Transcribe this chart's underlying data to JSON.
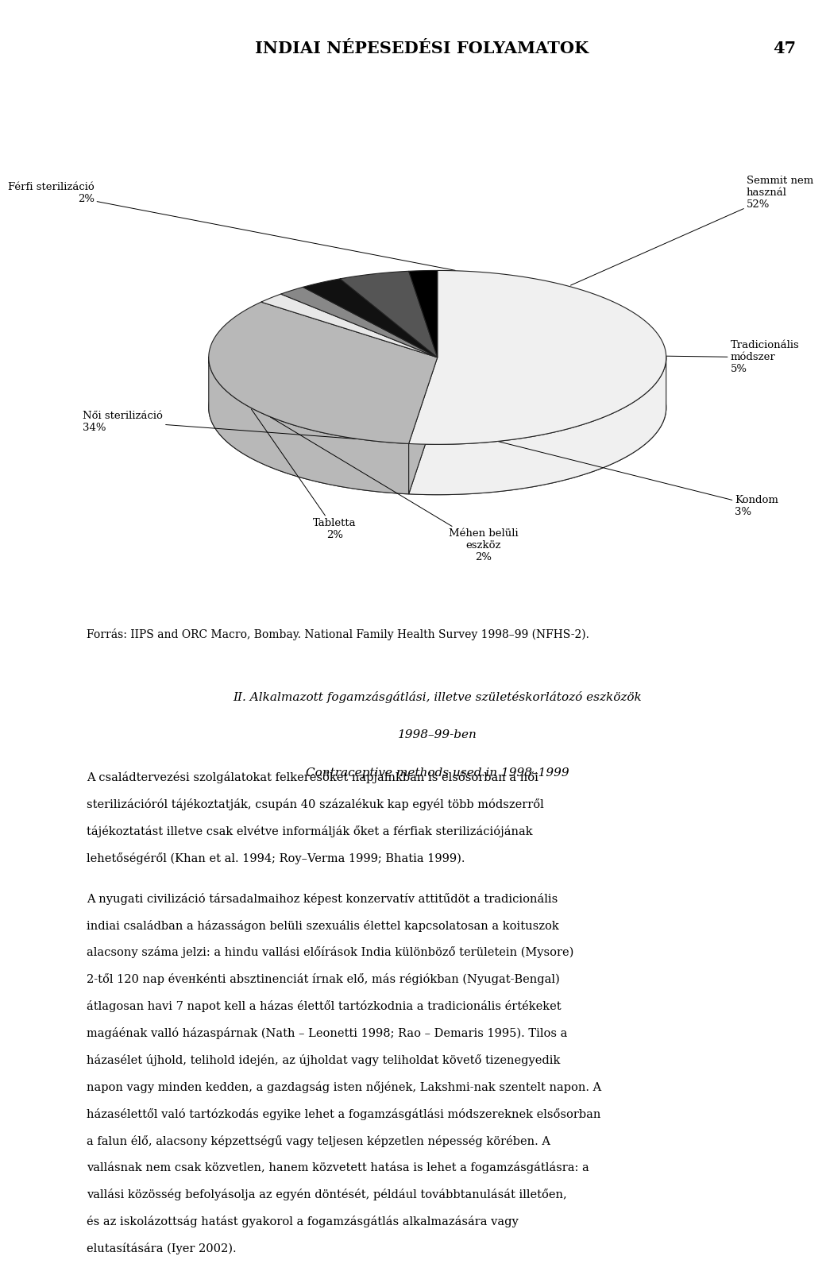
{
  "title_header": "INDIAI NÉPESEDÉSI FOLYAMATOK",
  "page_number": "47",
  "slices": [
    {
      "label": "Semmit nem\nhasznál\n52%",
      "pct": 52,
      "color": "#f0f0f0",
      "edge": "#222222"
    },
    {
      "label": "Női sterilizáció\n34%",
      "pct": 34,
      "color": "#b8b8b8",
      "edge": "#222222"
    },
    {
      "label": "Tabletta\n2%",
      "pct": 2,
      "color": "#e8e8e8",
      "edge": "#222222"
    },
    {
      "label": "Méhen belüli\neszköz\n2%",
      "pct": 2,
      "color": "#888888",
      "edge": "#222222"
    },
    {
      "label": "Kondom\n3%",
      "pct": 3,
      "color": "#111111",
      "edge": "#222222"
    },
    {
      "label": "Tradicionális\nmódszer\n5%",
      "pct": 5,
      "color": "#555555",
      "edge": "#222222"
    },
    {
      "label": "Férfi sterilizáció\n2%",
      "pct": 2,
      "color": "#000000",
      "edge": "#222222"
    }
  ],
  "source_text": "Forrás: IIPS and ORC Macro, Bombay. National Family Health Survey 1998–99 (NFHS-2).",
  "section_title_line1": "II. Alkalmazott fogamzásgátlási, illetve születéskorlátozó eszközök",
  "section_title_line2": "1998–99-ben",
  "section_title_line3": "Contraceptive methods used in 1998–1999",
  "body1_indent": "    A családtervezési szolgálatokat felkeresőket napjainkban is elsősorban a női sterilizációról tájékoztatják, csupán 40 százalékuk kap egyél több módszerről tájékoztatást illetve csak elvétve informálják őket a férfiak sterilizációjának lehetőségéről (Khan et al. 1994; Roy–Verma 1999; Bhatia 1999).",
  "body2_indent": "    A nyugati civilizáció társadalmaihoz képest konzervatív attitűdöt a tradicionális indiai családban a házasságon belüli szexuális élettel kapcsolatosan a koituszok alacsony száma jelzi: a hindu vallási előírások India különböző területein (Mysore) 2-től 120 nap évенkénti absztinenciát írnak elő, más régiókban (Nyugat-Bengal) átlagosan havi 7 napot kell a házas élettől tartózkodnia a tradicionális értékeket magáénak valló házaspárnak (Nath – Leonetti 1998; Rao – Demaris 1995). Tilos a házasélet újhold, telihold idején, az újholdat vagy teliholdat követő tizenegyedik napon vagy minden kedden, a gazdagság isten nőjének, Lakshmi-nak szentelt napon. A házasélettől való tartózkodás egyike lehet a fogamzásgátlási módszereknek elsősorban a falun élő, alacsony képzettségű vagy teljesen képzetlen népesség körében. A vallásnak nem csak közvetlen, hanem közvetett hatása is lehet a fogamzásgátlásra: a vallási közösség befolyásolja az egyén döntését, például továbbtanulását illetően, és az iskolázottság hatást gyakorol a fogamzásgátlás alkalmazására vagy elutasítására (Iyer 2002)."
}
